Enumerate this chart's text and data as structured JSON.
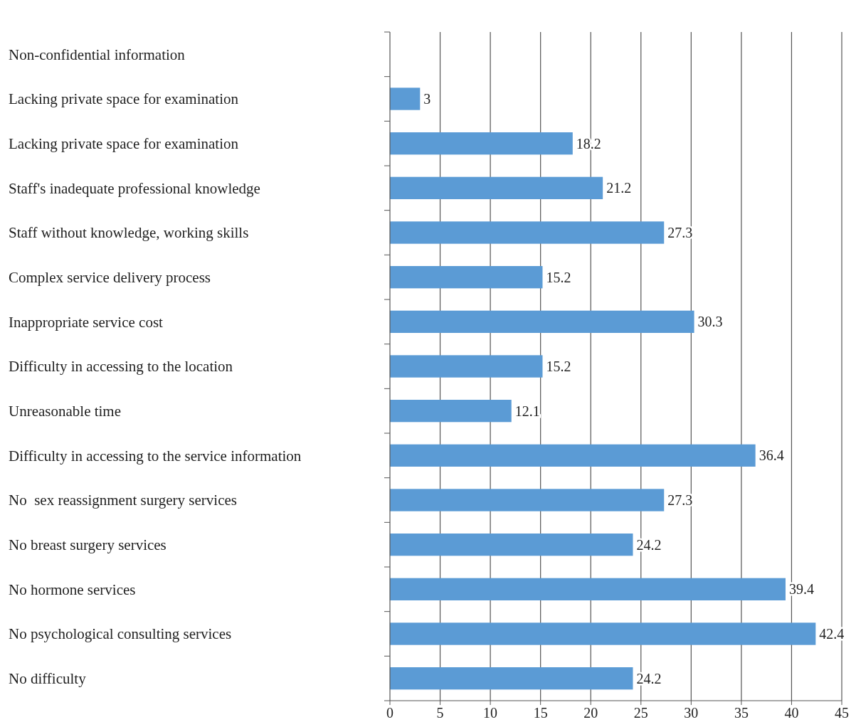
{
  "chart_data": {
    "type": "bar",
    "orientation": "horizontal",
    "categories": [
      "Non-confidential information",
      "Lacking private space for examination",
      "Lacking private space for examination",
      "Staff's inadequate professional knowledge",
      "Staff without knowledge, working skills",
      "Complex service delivery process",
      "Inappropriate service cost",
      "Difficulty in accessing to the location",
      "Unreasonable time",
      "Difficulty in accessing to the service information",
      "No  sex reassignment surgery services",
      "No breast surgery services",
      "No hormone services",
      "No psychological consulting services",
      "No difficulty"
    ],
    "values": [
      null,
      3,
      18.2,
      21.2,
      27.3,
      15.2,
      30.3,
      15.2,
      12.1,
      36.4,
      27.3,
      24.2,
      39.4,
      42.4,
      24.2
    ],
    "color": "#5b9bd5",
    "xlim": [
      0,
      45
    ],
    "xticks": [
      0,
      5,
      10,
      15,
      20,
      25,
      30,
      35,
      40,
      45
    ],
    "grid": "x",
    "data_labels": true
  }
}
